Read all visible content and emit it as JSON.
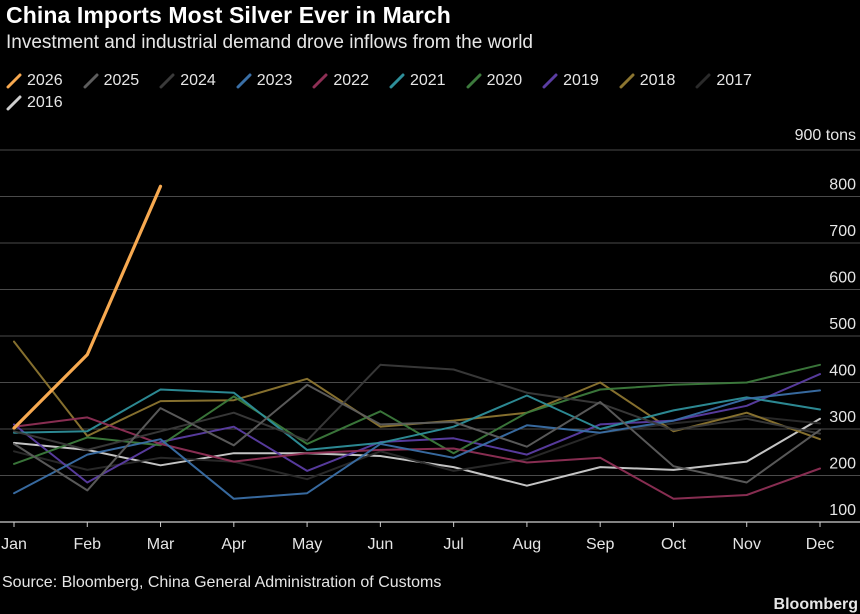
{
  "title": "China Imports Most Silver Ever in March",
  "subtitle": "Investment and industrial demand drove inflows from the world",
  "source": "Source: Bloomberg, China General Administration of Customs",
  "brand": "Bloomberg",
  "chart_data": {
    "type": "line",
    "title": "China Imports Most Silver Ever in March",
    "subtitle": "Investment and industrial demand drove inflows from the world",
    "y_unit_label": "900 tons",
    "ylim": [
      100,
      900
    ],
    "y_ticks": [
      100,
      200,
      300,
      400,
      500,
      600,
      700,
      800,
      900
    ],
    "y_tick_labels": [
      "100",
      "200",
      "300",
      "400",
      "500",
      "600",
      "700",
      "800",
      "900 tons"
    ],
    "grid": true,
    "legend_position": "top",
    "categories": [
      "Jan",
      "Feb",
      "Mar",
      "Apr",
      "May",
      "Jun",
      "Jul",
      "Aug",
      "Sep",
      "Oct",
      "Nov",
      "Dec"
    ],
    "series": [
      {
        "name": "2026",
        "color": "#f7a950",
        "values": [
          302,
          460,
          822,
          null,
          null,
          null,
          null,
          null,
          null,
          null,
          null,
          null
        ]
      },
      {
        "name": "2025",
        "color": "#5d5d5d",
        "values": [
          268,
          168,
          345,
          265,
          395,
          310,
          315,
          262,
          358,
          220,
          185,
          298
        ]
      },
      {
        "name": "2024",
        "color": "#3a3a3a",
        "values": [
          295,
          255,
          295,
          335,
          275,
          438,
          428,
          378,
          355,
          298,
          322,
          290
        ]
      },
      {
        "name": "2023",
        "color": "#3a6fa6",
        "values": [
          162,
          245,
          278,
          150,
          162,
          268,
          238,
          308,
          292,
          318,
          365,
          383
        ]
      },
      {
        "name": "2022",
        "color": "#8e2f55",
        "values": [
          305,
          325,
          268,
          230,
          248,
          255,
          258,
          228,
          238,
          150,
          158,
          215
        ]
      },
      {
        "name": "2021",
        "color": "#2e8f9a",
        "values": [
          292,
          295,
          385,
          378,
          255,
          270,
          305,
          372,
          300,
          340,
          368,
          342
        ]
      },
      {
        "name": "2020",
        "color": "#3c7a3c",
        "values": [
          225,
          282,
          265,
          370,
          268,
          338,
          248,
          335,
          385,
          395,
          400,
          438
        ]
      },
      {
        "name": "2019",
        "color": "#5b3da3",
        "values": [
          310,
          185,
          272,
          305,
          210,
          272,
          280,
          245,
          310,
          318,
          350,
          418
        ]
      },
      {
        "name": "2018",
        "color": "#8c7530",
        "values": [
          488,
          285,
          360,
          362,
          408,
          305,
          318,
          335,
          400,
          295,
          335,
          278
        ]
      },
      {
        "name": "2017",
        "color": "#2a2a2a",
        "values": [
          252,
          212,
          238,
          230,
          192,
          252,
          210,
          235,
          292,
          312,
          328,
          312
        ]
      },
      {
        "name": "2016",
        "color": "#cfcfcf",
        "values": [
          270,
          255,
          222,
          248,
          248,
          242,
          218,
          178,
          218,
          212,
          230,
          322
        ]
      }
    ]
  }
}
